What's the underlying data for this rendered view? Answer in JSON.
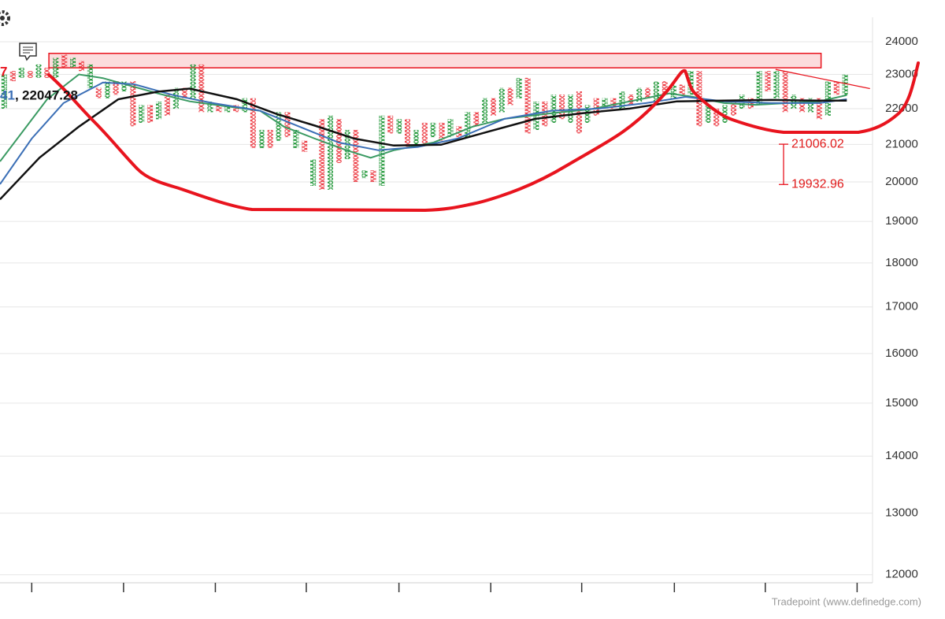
{
  "chart_data": {
    "type": "pointfigure",
    "log_y": true,
    "ylim": [
      11875,
      24774
    ],
    "yticks": [
      12000,
      13000,
      14000,
      15000,
      16000,
      17000,
      18000,
      19000,
      20000,
      21000,
      22000,
      23000,
      24000
    ],
    "grid": true,
    "xlim": [
      -0.5,
      101.2
    ],
    "xticks": [
      3.2,
      13.9,
      24.6,
      35.2,
      46,
      56.7,
      67.3,
      78.1,
      88.7,
      99.4
    ],
    "colors": {
      "X": "#16922f",
      "O": "#e8141e"
    },
    "columns": {
      "kinds": [
        "X",
        "O",
        "X",
        "O",
        "X",
        "O",
        "X",
        "O",
        "X",
        "O",
        "X",
        "O",
        "X",
        "O",
        "X",
        "O",
        "X",
        "O",
        "X",
        "O",
        "X",
        "O",
        "X",
        "O",
        "X",
        "O",
        "X",
        "O",
        "X",
        "O",
        "X",
        "O",
        "X",
        "O",
        "X",
        "O",
        "X",
        "O",
        "X",
        "O",
        "X",
        "O",
        "X",
        "O",
        "X",
        "O",
        "X",
        "O",
        "X",
        "O",
        "X",
        "O",
        "X",
        "O",
        "X",
        "O",
        "X",
        "O",
        "X",
        "O",
        "X",
        "O",
        "X",
        "O",
        "X",
        "O",
        "X",
        "O",
        "X",
        "O",
        "X",
        "O",
        "X",
        "O",
        "X",
        "O",
        "X",
        "O",
        "X",
        "O",
        "X",
        "O",
        "X",
        "O",
        "X",
        "O",
        "X",
        "O",
        "X",
        "O",
        "X",
        "O",
        "X",
        "O",
        "X",
        "O",
        "X",
        "O",
        "X"
      ],
      "lows": [
        22000,
        22800,
        22900,
        22900,
        22900,
        22900,
        22900,
        23200,
        23200,
        23100,
        22600,
        22300,
        22300,
        22400,
        22500,
        21500,
        21600,
        21600,
        21700,
        21800,
        22000,
        22300,
        22300,
        21900,
        21900,
        21900,
        21900,
        21900,
        21900,
        20900,
        20900,
        20900,
        21100,
        21200,
        20900,
        20800,
        19900,
        19800,
        19800,
        20500,
        20600,
        20000,
        20100,
        20000,
        19900,
        21300,
        21300,
        20900,
        21000,
        21000,
        21200,
        21100,
        21200,
        21200,
        21200,
        21500,
        21600,
        21800,
        21900,
        22100,
        22300,
        21300,
        21400,
        21500,
        21600,
        21700,
        21600,
        21300,
        21600,
        21800,
        22000,
        22000,
        22000,
        22100,
        22200,
        22300,
        22200,
        22400,
        22300,
        22400,
        22400,
        21500,
        21600,
        21500,
        21600,
        21800,
        22000,
        22000,
        22100,
        22500,
        22300,
        21900,
        22000,
        21900,
        21900,
        21700,
        21800,
        22400,
        22400
      ],
      "highs": [
        23000,
        23100,
        23200,
        23100,
        23300,
        23200,
        23500,
        23600,
        23500,
        23400,
        23300,
        22600,
        22800,
        22800,
        22800,
        22800,
        22100,
        22100,
        22200,
        22400,
        22600,
        22600,
        23300,
        23300,
        22200,
        22100,
        22100,
        22100,
        22300,
        22300,
        21400,
        21400,
        21900,
        21900,
        21400,
        21100,
        20600,
        21700,
        21800,
        21700,
        21400,
        21400,
        20300,
        20300,
        21800,
        21800,
        21700,
        21700,
        21400,
        21600,
        21600,
        21600,
        21700,
        21500,
        21900,
        21900,
        22300,
        22300,
        22600,
        22600,
        22900,
        22900,
        22200,
        22200,
        22400,
        22400,
        22400,
        22500,
        22100,
        22300,
        22300,
        22300,
        22500,
        22400,
        22600,
        22600,
        22800,
        22800,
        22700,
        22700,
        23100,
        23100,
        22100,
        22000,
        22100,
        22200,
        22400,
        22300,
        23100,
        23100,
        23100,
        23100,
        22400,
        22300,
        22300,
        22300,
        22800,
        22800,
        23000
      ]
    },
    "series": [
      {
        "color": "#3a9a62",
        "x": [
          -0.5,
          5,
          8.7,
          11.5,
          17.9,
          21.6,
          25.2,
          29.8,
          32.6,
          36.2,
          39.9,
          42.7,
          45.4,
          50,
          54.6,
          58.3,
          63.8,
          68.3,
          72.9,
          77.5,
          80.3,
          83.9,
          87.6,
          91.3,
          95,
          98.2
        ],
        "values": [
          20540,
          22270,
          23000,
          22890,
          22440,
          22210,
          22090,
          21940,
          21490,
          21160,
          20840,
          20640,
          20840,
          21050,
          21490,
          21710,
          21870,
          21980,
          22210,
          22440,
          22340,
          22160,
          22110,
          22160,
          22210,
          22390
        ]
      },
      {
        "color": "#3b6fb6",
        "x": [
          -0.5,
          3.2,
          6.9,
          11.5,
          15.1,
          19.7,
          24.3,
          29.8,
          34.4,
          39,
          43.6,
          48.2,
          52.8,
          58.3,
          63.8,
          69.3,
          74.8,
          79.4,
          83.9,
          89.4,
          95,
          98.2
        ],
        "values": [
          19940,
          21160,
          22160,
          22760,
          22710,
          22390,
          22160,
          21940,
          21490,
          21050,
          20840,
          20930,
          21160,
          21710,
          21940,
          22000,
          22160,
          22340,
          22210,
          22160,
          22160,
          22270
        ]
      },
      {
        "color": "#111111",
        "x": [
          -0.5,
          4.1,
          8.7,
          13.3,
          17.9,
          21.6,
          27.1,
          31.7,
          36.2,
          40.8,
          45.4,
          50.9,
          56.4,
          61.9,
          67.4,
          72.9,
          78.4,
          83.9,
          89.4,
          95,
          98.2
        ],
        "values": [
          19550,
          20640,
          21490,
          22270,
          22490,
          22580,
          22270,
          21850,
          21520,
          21160,
          20970,
          20990,
          21350,
          21710,
          21870,
          22000,
          22210,
          22230,
          22250,
          22230,
          22230
        ]
      }
    ],
    "zone": {
      "x": [
        5.2,
        95.2
      ],
      "low": 23200,
      "high": 23640,
      "color": "#e8141e"
    },
    "trendline": {
      "x": [
        89.9,
        100.9
      ],
      "values": [
        23150,
        22580
      ],
      "color": "#e8141e"
    },
    "levels": [
      21006.02,
      19932.96
    ],
    "readouts": [
      {
        "text": "7",
        "color": "#e8141e"
      },
      {
        "text": "41",
        "color": "#3b6fb6"
      },
      {
        "text": ",",
        "color": "#111111"
      },
      {
        "text": "22047.28",
        "color": "#111111"
      }
    ],
    "watermark": "Tradepoint (www.definedge.com)"
  }
}
